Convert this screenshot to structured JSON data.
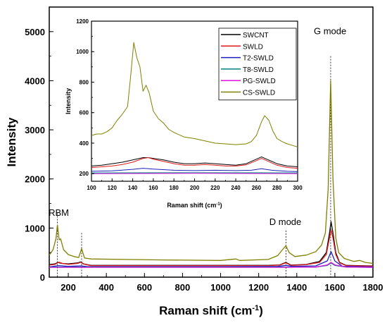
{
  "chart_data": [
    {
      "type": "line",
      "title": "",
      "xlabel": "Raman shift (cm",
      "xlabel_sup": "-1",
      "xlabel_tail": ")",
      "ylabel": "Intensity",
      "xlim": [
        100,
        1800
      ],
      "ylim": [
        0,
        5500
      ],
      "xticks": [
        200,
        400,
        600,
        800,
        1000,
        1200,
        1400,
        1600,
        1800
      ],
      "yticks": [
        0,
        1000,
        2000,
        3000,
        4000,
        5000
      ],
      "grid": false,
      "annotations": [
        {
          "text": "RBM",
          "x": 150,
          "y": 1250
        },
        {
          "text": "D mode",
          "x": 1340,
          "y": 1060
        },
        {
          "text": "G mode",
          "x": 1575,
          "y": 4950
        }
      ],
      "reference_lines_x": [
        143,
        270,
        1343,
        1578
      ],
      "series": [
        {
          "name": "SWCNT",
          "color": "#000000",
          "x": [
            100,
            130,
            145,
            165,
            200,
            250,
            265,
            280,
            320,
            600,
            1000,
            1250,
            1310,
            1343,
            1370,
            1450,
            1520,
            1555,
            1572,
            1580,
            1590,
            1605,
            1625,
            1660,
            1800
          ],
          "y": [
            255,
            270,
            300,
            280,
            270,
            290,
            310,
            270,
            240,
            240,
            240,
            240,
            250,
            300,
            245,
            260,
            320,
            500,
            900,
            1130,
            900,
            500,
            300,
            240,
            230
          ]
        },
        {
          "name": "SWLD",
          "color": "#e31a1c",
          "x": [
            100,
            130,
            150,
            170,
            200,
            250,
            265,
            280,
            320,
            600,
            1000,
            1250,
            1310,
            1343,
            1370,
            1450,
            1520,
            1555,
            1572,
            1580,
            1590,
            1605,
            1625,
            1660,
            1800
          ],
          "y": [
            245,
            260,
            305,
            280,
            260,
            280,
            305,
            265,
            235,
            235,
            235,
            235,
            245,
            290,
            240,
            255,
            300,
            460,
            800,
            960,
            800,
            460,
            290,
            235,
            225
          ]
        },
        {
          "name": "T2-SWLD",
          "color": "#1f1fbf",
          "x": [
            100,
            150,
            200,
            265,
            300,
            1000,
            1300,
            1343,
            1380,
            1500,
            1560,
            1580,
            1600,
            1640,
            1800
          ],
          "y": [
            210,
            235,
            220,
            230,
            215,
            215,
            220,
            240,
            220,
            230,
            330,
            520,
            330,
            220,
            210
          ]
        },
        {
          "name": "T8-SWLD",
          "color": "#008080",
          "x": [
            100,
            300,
            1000,
            1500,
            1560,
            1580,
            1600,
            1660,
            1800
          ],
          "y": [
            205,
            205,
            205,
            205,
            240,
            290,
            240,
            205,
            200
          ]
        },
        {
          "name": "PG-SWLD",
          "color": "#e010e0",
          "x": [
            100,
            300,
            1000,
            1300,
            1500,
            1560,
            1580,
            1600,
            1660,
            1800
          ],
          "y": [
            200,
            200,
            200,
            200,
            205,
            250,
            300,
            250,
            205,
            200
          ]
        },
        {
          "name": "CS-SWLD",
          "color": "#808000",
          "x": [
            100,
            120,
            135,
            143,
            152,
            160,
            175,
            200,
            230,
            255,
            270,
            285,
            320,
            500,
            700,
            1000,
            1080,
            1100,
            1250,
            1300,
            1325,
            1343,
            1360,
            1390,
            1450,
            1500,
            1530,
            1550,
            1565,
            1578,
            1590,
            1605,
            1620,
            1650,
            1700,
            1730,
            1760,
            1800
          ],
          "y": [
            450,
            560,
            780,
            1060,
            760,
            780,
            560,
            460,
            420,
            400,
            580,
            390,
            370,
            360,
            350,
            340,
            370,
            340,
            360,
            440,
            560,
            640,
            500,
            420,
            450,
            520,
            650,
            900,
            1800,
            4000,
            2000,
            800,
            500,
            380,
            320,
            340,
            300,
            280
          ]
        }
      ]
    },
    {
      "type": "line",
      "title": "",
      "xlabel": "Raman shift (cm",
      "xlabel_sup": "-1",
      "xlabel_tail": ")",
      "ylabel": "Intensity",
      "xlim": [
        100,
        300
      ],
      "ylim": [
        150,
        1200
      ],
      "xticks": [
        100,
        120,
        140,
        160,
        180,
        200,
        220,
        240,
        260,
        280,
        300
      ],
      "yticks": [
        200,
        400,
        600,
        800,
        1000,
        1200
      ],
      "grid": false,
      "legend": "top-right",
      "series": [
        {
          "name": "SWCNT",
          "color": "#000000",
          "x": [
            100,
            110,
            120,
            130,
            140,
            150,
            155,
            160,
            170,
            180,
            190,
            200,
            210,
            220,
            230,
            240,
            250,
            260,
            265,
            270,
            280,
            290,
            300
          ],
          "y": [
            250,
            255,
            265,
            275,
            290,
            305,
            305,
            300,
            290,
            275,
            265,
            265,
            270,
            265,
            260,
            255,
            265,
            295,
            310,
            295,
            265,
            250,
            245
          ]
        },
        {
          "name": "SWLD",
          "color": "#e31a1c",
          "x": [
            100,
            110,
            120,
            130,
            140,
            150,
            155,
            160,
            170,
            180,
            190,
            200,
            210,
            220,
            230,
            240,
            250,
            260,
            265,
            270,
            280,
            290,
            300
          ],
          "y": [
            240,
            245,
            250,
            260,
            275,
            300,
            305,
            295,
            280,
            265,
            255,
            255,
            260,
            255,
            250,
            250,
            258,
            285,
            300,
            285,
            255,
            240,
            235
          ]
        },
        {
          "name": "T2-SWLD",
          "color": "#1f1fbf",
          "x": [
            100,
            120,
            140,
            150,
            160,
            180,
            200,
            220,
            240,
            255,
            265,
            275,
            290,
            300
          ],
          "y": [
            215,
            218,
            228,
            235,
            230,
            222,
            220,
            222,
            220,
            222,
            232,
            222,
            215,
            213
          ]
        },
        {
          "name": "T8-SWLD",
          "color": "#008080",
          "x": [
            100,
            200,
            300
          ],
          "y": [
            205,
            206,
            205
          ]
        },
        {
          "name": "PG-SWLD",
          "color": "#e010e0",
          "x": [
            100,
            200,
            300
          ],
          "y": [
            200,
            202,
            200
          ]
        },
        {
          "name": "CS-SWLD",
          "color": "#808000",
          "x": [
            100,
            105,
            110,
            115,
            120,
            125,
            130,
            135,
            138,
            141,
            144,
            147,
            150,
            153,
            156,
            160,
            165,
            170,
            175,
            180,
            185,
            190,
            195,
            200,
            210,
            220,
            230,
            240,
            250,
            255,
            260,
            265,
            268,
            272,
            276,
            280,
            285,
            290,
            295,
            300
          ],
          "y": [
            450,
            460,
            460,
            475,
            500,
            550,
            590,
            640,
            840,
            1060,
            960,
            900,
            740,
            780,
            730,
            610,
            560,
            530,
            490,
            470,
            455,
            440,
            435,
            430,
            415,
            400,
            395,
            390,
            395,
            410,
            450,
            540,
            580,
            550,
            480,
            430,
            410,
            395,
            385,
            375
          ]
        }
      ]
    }
  ]
}
